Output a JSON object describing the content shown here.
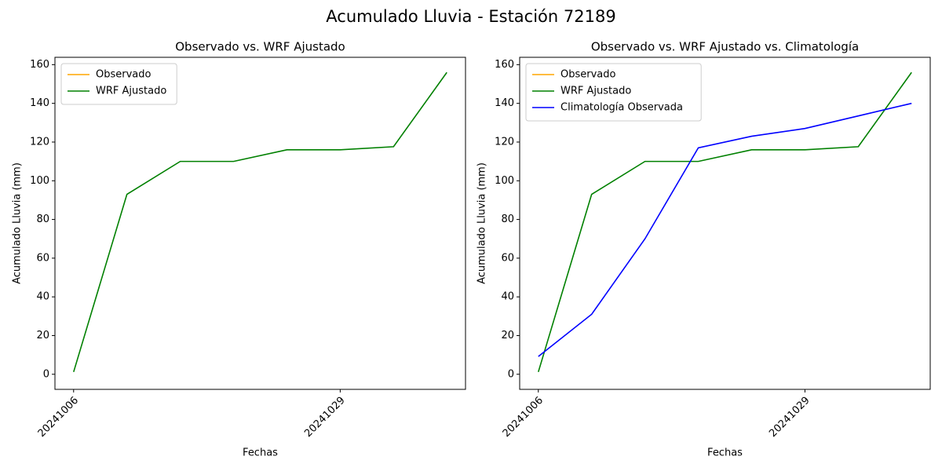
{
  "title": "Acumulado Lluvia - Estación 72189",
  "chart_data": [
    {
      "type": "line",
      "title": "Observado vs. WRF Ajustado",
      "x_label": "Fechas",
      "y_label": "Acumulado Lluvia (mm)",
      "categories": [
        "20241006",
        null,
        null,
        null,
        null,
        "20241029",
        null,
        null
      ],
      "series": [
        {
          "name": "Observado",
          "color": "orange",
          "values": [
            null,
            null,
            null,
            null,
            null,
            null,
            null,
            null
          ]
        },
        {
          "name": "WRF Ajustado",
          "color": "green",
          "values": [
            1.2,
            93,
            110,
            110,
            116,
            116,
            117.6,
            156
          ]
        }
      ],
      "ylim": [
        -7.8,
        163.8
      ],
      "yticks": [
        0,
        20,
        40,
        60,
        80,
        100,
        120,
        140,
        160
      ],
      "grid": false,
      "legend": "upper left"
    },
    {
      "type": "line",
      "title": "Observado vs. WRF Ajustado vs. Climatología",
      "x_label": "Fechas",
      "y_label": "Acumulado Lluvia (mm)",
      "categories": [
        "20241006",
        null,
        null,
        null,
        null,
        "20241029",
        null,
        null
      ],
      "series": [
        {
          "name": "Observado",
          "color": "orange",
          "values": [
            null,
            null,
            null,
            null,
            null,
            null,
            null,
            null
          ]
        },
        {
          "name": "WRF Ajustado",
          "color": "green",
          "values": [
            1.2,
            93,
            110,
            110,
            116,
            116,
            117.6,
            156
          ]
        },
        {
          "name": "Climatología Observada",
          "color": "blue",
          "values": [
            9.2,
            31,
            70,
            117,
            123,
            127,
            133.5,
            140
          ]
        }
      ],
      "ylim": [
        -7.8,
        163.8
      ],
      "yticks": [
        0,
        20,
        40,
        60,
        80,
        100,
        120,
        140,
        160
      ],
      "grid": false,
      "legend": "upper left"
    }
  ]
}
